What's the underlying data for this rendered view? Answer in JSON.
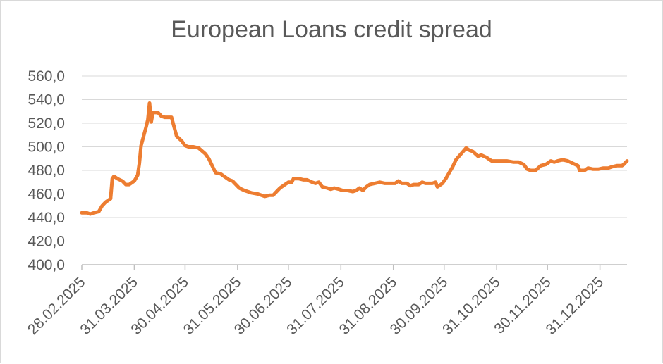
{
  "chart_data": {
    "type": "line",
    "title": "European Loans credit spread",
    "xlabel": "",
    "ylabel": "",
    "ylim": [
      400,
      560
    ],
    "y_ticks": [
      "400,0",
      "420,0",
      "440,0",
      "460,0",
      "480,0",
      "500,0",
      "520,0",
      "540,0",
      "560,0"
    ],
    "y_tick_values": [
      400,
      420,
      440,
      460,
      480,
      500,
      520,
      540,
      560
    ],
    "x_ticks": [
      "28.02.2025",
      "31.03.2025",
      "30.04.2025",
      "31.05.2025",
      "30.06.2025",
      "31.07.2025",
      "31.08.2025",
      "30.09.2025",
      "31.10.2025",
      "30.11.2025",
      "31.12.2025"
    ],
    "xlim": [
      "2025-02-28",
      "2026-01-16"
    ],
    "grid": true,
    "legend": "none",
    "series": [
      {
        "color": "#ed7d31",
        "points": [
          [
            "2025-02-28",
            444
          ],
          [
            "2025-03-03",
            444
          ],
          [
            "2025-03-05",
            443
          ],
          [
            "2025-03-07",
            444
          ],
          [
            "2025-03-10",
            445
          ],
          [
            "2025-03-12",
            450
          ],
          [
            "2025-03-14",
            453
          ],
          [
            "2025-03-17",
            456
          ],
          [
            "2025-03-18",
            473
          ],
          [
            "2025-03-19",
            475
          ],
          [
            "2025-03-21",
            473
          ],
          [
            "2025-03-24",
            471
          ],
          [
            "2025-03-26",
            468
          ],
          [
            "2025-03-28",
            468
          ],
          [
            "2025-03-31",
            471
          ],
          [
            "2025-04-02",
            476
          ],
          [
            "2025-04-03",
            486
          ],
          [
            "2025-04-04",
            501
          ],
          [
            "2025-04-07",
            517
          ],
          [
            "2025-04-08",
            523
          ],
          [
            "2025-04-09",
            537
          ],
          [
            "2025-04-10",
            521
          ],
          [
            "2025-04-11",
            529
          ],
          [
            "2025-04-14",
            529
          ],
          [
            "2025-04-16",
            526
          ],
          [
            "2025-04-18",
            525
          ],
          [
            "2025-04-22",
            525
          ],
          [
            "2025-04-25",
            509
          ],
          [
            "2025-04-28",
            505
          ],
          [
            "2025-04-30",
            501
          ],
          [
            "2025-05-02",
            500
          ],
          [
            "2025-05-05",
            500
          ],
          [
            "2025-05-08",
            499
          ],
          [
            "2025-05-12",
            494
          ],
          [
            "2025-05-14",
            490
          ],
          [
            "2025-05-16",
            484
          ],
          [
            "2025-05-18",
            478
          ],
          [
            "2025-05-21",
            477
          ],
          [
            "2025-05-23",
            475
          ],
          [
            "2025-05-26",
            472
          ],
          [
            "2025-05-28",
            471
          ],
          [
            "2025-05-30",
            468
          ],
          [
            "2025-06-01",
            465
          ],
          [
            "2025-06-04",
            463
          ],
          [
            "2025-06-08",
            461
          ],
          [
            "2025-06-12",
            460
          ],
          [
            "2025-06-16",
            458
          ],
          [
            "2025-06-19",
            459
          ],
          [
            "2025-06-21",
            459
          ],
          [
            "2025-06-23",
            462
          ],
          [
            "2025-06-25",
            465
          ],
          [
            "2025-06-28",
            468
          ],
          [
            "2025-06-30",
            470
          ],
          [
            "2025-07-02",
            470
          ],
          [
            "2025-07-03",
            473
          ],
          [
            "2025-07-06",
            473
          ],
          [
            "2025-07-09",
            472
          ],
          [
            "2025-07-11",
            472
          ],
          [
            "2025-07-14",
            470
          ],
          [
            "2025-07-16",
            469
          ],
          [
            "2025-07-18",
            470
          ],
          [
            "2025-07-20",
            466
          ],
          [
            "2025-07-23",
            465
          ],
          [
            "2025-07-25",
            464
          ],
          [
            "2025-07-27",
            465
          ],
          [
            "2025-07-30",
            464
          ],
          [
            "2025-08-01",
            463
          ],
          [
            "2025-08-04",
            463
          ],
          [
            "2025-08-07",
            462
          ],
          [
            "2025-08-09",
            463
          ],
          [
            "2025-08-11",
            465
          ],
          [
            "2025-08-13",
            463
          ],
          [
            "2025-08-15",
            466
          ],
          [
            "2025-08-17",
            468
          ],
          [
            "2025-08-20",
            469
          ],
          [
            "2025-08-23",
            470
          ],
          [
            "2025-08-26",
            469
          ],
          [
            "2025-08-29",
            469
          ],
          [
            "2025-09-01",
            469
          ],
          [
            "2025-09-03",
            471
          ],
          [
            "2025-09-05",
            469
          ],
          [
            "2025-09-08",
            469
          ],
          [
            "2025-09-10",
            467
          ],
          [
            "2025-09-12",
            468
          ],
          [
            "2025-09-15",
            468
          ],
          [
            "2025-09-17",
            470
          ],
          [
            "2025-09-19",
            469
          ],
          [
            "2025-09-23",
            469
          ],
          [
            "2025-09-25",
            470
          ],
          [
            "2025-09-26",
            466
          ],
          [
            "2025-09-29",
            469
          ],
          [
            "2025-10-01",
            473
          ],
          [
            "2025-10-03",
            478
          ],
          [
            "2025-10-05",
            483
          ],
          [
            "2025-10-07",
            489
          ],
          [
            "2025-10-10",
            494
          ],
          [
            "2025-10-13",
            499
          ],
          [
            "2025-10-15",
            497
          ],
          [
            "2025-10-17",
            496
          ],
          [
            "2025-10-20",
            492
          ],
          [
            "2025-10-22",
            493
          ],
          [
            "2025-10-25",
            491
          ],
          [
            "2025-10-28",
            488
          ],
          [
            "2025-10-31",
            488
          ],
          [
            "2025-11-03",
            488
          ],
          [
            "2025-11-06",
            488
          ],
          [
            "2025-11-10",
            487
          ],
          [
            "2025-11-13",
            487
          ],
          [
            "2025-11-16",
            485
          ],
          [
            "2025-11-18",
            481
          ],
          [
            "2025-11-20",
            480
          ],
          [
            "2025-11-23",
            480
          ],
          [
            "2025-11-26",
            484
          ],
          [
            "2025-11-29",
            485
          ],
          [
            "2025-12-02",
            488
          ],
          [
            "2025-12-04",
            487
          ],
          [
            "2025-12-06",
            488
          ],
          [
            "2025-12-09",
            489
          ],
          [
            "2025-12-12",
            488
          ],
          [
            "2025-12-15",
            486
          ],
          [
            "2025-12-18",
            484
          ],
          [
            "2025-12-19",
            480
          ],
          [
            "2025-12-22",
            480
          ],
          [
            "2025-12-24",
            482
          ],
          [
            "2025-12-27",
            481
          ],
          [
            "2025-12-30",
            481
          ],
          [
            "2026-01-02",
            482
          ],
          [
            "2026-01-05",
            482
          ],
          [
            "2026-01-07",
            483
          ],
          [
            "2026-01-10",
            484
          ],
          [
            "2026-01-13",
            484
          ],
          [
            "2026-01-14",
            485
          ],
          [
            "2026-01-16",
            488
          ]
        ]
      }
    ]
  }
}
